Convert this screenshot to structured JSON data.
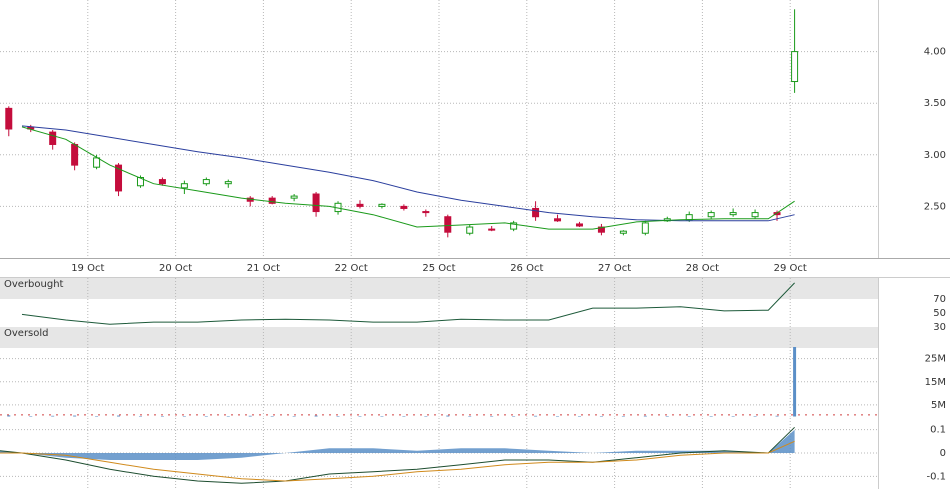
{
  "chart_data": [
    {
      "type": "candlestick",
      "xlim": [
        -10,
        90
      ],
      "xticks": [
        {
          "value": 0,
          "label": "19 Oct"
        },
        {
          "value": 10,
          "label": "20 Oct"
        },
        {
          "value": 20,
          "label": "21 Oct"
        },
        {
          "value": 30,
          "label": "22 Oct"
        },
        {
          "value": 40,
          "label": "25 Oct"
        },
        {
          "value": 50,
          "label": "26 Oct"
        },
        {
          "value": 60,
          "label": "27 Oct"
        },
        {
          "value": 70,
          "label": "28 Oct"
        },
        {
          "value": 80,
          "label": "29 Oct"
        }
      ],
      "ylim": [
        2.0,
        4.5
      ],
      "yticks": [
        {
          "value": 2.5,
          "label": "2.50"
        },
        {
          "value": 3,
          "label": "3.00"
        },
        {
          "value": 3.5,
          "label": "3.50"
        },
        {
          "value": 4,
          "label": "4.00"
        }
      ],
      "grid": true,
      "up_color": "#1a9a1a",
      "down_color": "#c40d3c",
      "x": [
        -9,
        -6.5,
        -4,
        -1.5,
        1,
        3.5,
        6,
        8.5,
        11,
        13.5,
        16,
        18.5,
        21,
        23.5,
        26,
        28.5,
        31,
        33.5,
        36,
        38.5,
        41,
        43.5,
        46,
        48.5,
        51,
        53.5,
        56,
        58.5,
        61,
        63.5,
        66,
        68.5,
        71,
        73.5,
        76,
        78.5,
        80.5
      ],
      "open": [
        3.45,
        3.27,
        3.22,
        3.1,
        2.88,
        2.9,
        2.7,
        2.76,
        2.68,
        2.72,
        2.72,
        2.58,
        2.58,
        2.58,
        2.62,
        2.45,
        2.52,
        2.5,
        2.5,
        2.45,
        2.4,
        2.24,
        2.28,
        2.28,
        2.48,
        2.38,
        2.33,
        2.3,
        2.24,
        2.24,
        2.36,
        2.37,
        2.4,
        2.42,
        2.4,
        2.44,
        3.71
      ],
      "high": [
        3.47,
        3.29,
        3.24,
        3.12,
        3.0,
        2.92,
        2.8,
        2.78,
        2.75,
        2.78,
        2.76,
        2.6,
        2.6,
        2.62,
        2.64,
        2.55,
        2.56,
        2.53,
        2.52,
        2.47,
        2.42,
        2.32,
        2.31,
        2.36,
        2.55,
        2.42,
        2.35,
        2.33,
        2.27,
        2.36,
        2.4,
        2.45,
        2.46,
        2.48,
        2.47,
        2.46,
        4.41
      ],
      "low": [
        3.18,
        3.22,
        3.05,
        2.85,
        2.86,
        2.6,
        2.68,
        2.7,
        2.62,
        2.7,
        2.68,
        2.5,
        2.52,
        2.55,
        2.4,
        2.42,
        2.48,
        2.48,
        2.46,
        2.4,
        2.2,
        2.22,
        2.26,
        2.26,
        2.36,
        2.35,
        2.3,
        2.22,
        2.22,
        2.22,
        2.35,
        2.35,
        2.38,
        2.4,
        2.38,
        2.36,
        3.6
      ],
      "close": [
        3.25,
        3.25,
        3.1,
        2.9,
        2.97,
        2.65,
        2.78,
        2.72,
        2.72,
        2.76,
        2.74,
        2.55,
        2.53,
        2.6,
        2.45,
        2.53,
        2.5,
        2.52,
        2.48,
        2.44,
        2.25,
        2.3,
        2.27,
        2.34,
        2.4,
        2.36,
        2.31,
        2.25,
        2.26,
        2.34,
        2.38,
        2.42,
        2.44,
        2.44,
        2.44,
        2.42,
        4.0
      ],
      "series": [
        {
          "color": "#2b3f9e",
          "x": [
            -7.5,
            -2.5,
            2.5,
            7.5,
            12.5,
            17.5,
            22.5,
            27.5,
            32.5,
            37.5,
            42.5,
            47.5,
            52.5,
            57.5,
            62.5,
            67.5,
            72.5,
            77.5,
            80.5
          ],
          "values": [
            3.28,
            3.24,
            3.17,
            3.1,
            3.03,
            2.97,
            2.9,
            2.83,
            2.75,
            2.64,
            2.56,
            2.5,
            2.44,
            2.4,
            2.37,
            2.36,
            2.36,
            2.36,
            2.42
          ]
        },
        {
          "color": "#1a9a1a",
          "x": [
            -7.5,
            -2.5,
            2.5,
            7.5,
            12.5,
            17.5,
            22.5,
            27.5,
            32.5,
            37.5,
            42.5,
            47.5,
            52.5,
            57.5,
            62.5,
            67.5,
            72.5,
            77.5,
            80.5
          ],
          "values": [
            3.27,
            3.15,
            2.9,
            2.72,
            2.65,
            2.58,
            2.53,
            2.5,
            2.42,
            2.3,
            2.32,
            2.34,
            2.28,
            2.28,
            2.35,
            2.37,
            2.38,
            2.38,
            2.55
          ]
        }
      ]
    },
    {
      "type": "line",
      "ylim": [
        0,
        100
      ],
      "yticks": [
        30,
        50,
        70
      ],
      "bands": [
        {
          "label": "Overbought",
          "from": 70,
          "to": 100
        },
        {
          "label": "Oversold",
          "from": 0,
          "to": 30
        }
      ],
      "series": [
        {
          "color": "#1d5a3a",
          "x": [
            -7.5,
            -2.5,
            2.5,
            7.5,
            12.5,
            17.5,
            22.5,
            27.5,
            32.5,
            37.5,
            42.5,
            47.5,
            52.5,
            57.5,
            62.5,
            67.5,
            72.5,
            77.5,
            80.5
          ],
          "values": [
            48,
            40,
            34,
            37,
            37,
            40,
            41,
            40,
            37,
            37,
            41,
            40,
            40,
            57,
            57,
            59,
            53,
            54,
            93
          ]
        }
      ]
    },
    {
      "type": "bar",
      "ylim": [
        0,
        30
      ],
      "yticks": [
        {
          "value": 5,
          "label": "5M"
        },
        {
          "value": 15,
          "label": "15M"
        },
        {
          "value": 25,
          "label": "25M"
        }
      ],
      "grid": true,
      "color": "#5b8fc7",
      "ref_line": 0.7,
      "ref_color": "#d04040",
      "x": [
        -9,
        -6.5,
        -4,
        -1.5,
        1,
        3.5,
        6,
        8.5,
        11,
        13.5,
        16,
        18.5,
        21,
        23.5,
        26,
        28.5,
        31,
        33.5,
        36,
        38.5,
        41,
        43.5,
        46,
        48.5,
        51,
        53.5,
        56,
        58.5,
        61,
        63.5,
        66,
        68.5,
        71,
        73.5,
        76,
        78.5,
        80.5
      ],
      "values": [
        0.5,
        0.2,
        0.3,
        0.4,
        0.2,
        0.4,
        0.2,
        0.2,
        0.1,
        0.2,
        0.1,
        0.3,
        0.2,
        0.1,
        0.4,
        0.2,
        0.1,
        0.1,
        0.1,
        0.1,
        0.4,
        0.2,
        0.1,
        0.2,
        0.3,
        0.1,
        0.1,
        0.2,
        0.1,
        0.3,
        0.1,
        0.2,
        0.1,
        0.2,
        0.1,
        0.3,
        30
      ]
    },
    {
      "type": "line",
      "ylim": [
        -0.15,
        0.15
      ],
      "yticks": [
        -0.1,
        0,
        0.1
      ],
      "grid": true,
      "series": [
        {
          "color": "#5b8fc7",
          "fill": true,
          "x": [
            -10,
            -7.5,
            -2.5,
            2.5,
            7.5,
            12.5,
            17.5,
            22.5,
            27.5,
            32.5,
            37.5,
            42.5,
            47.5,
            52.5,
            57.5,
            62.5,
            67.5,
            72.5,
            77.5,
            80.5
          ],
          "values": [
            0.01,
            0,
            -0.02,
            -0.03,
            -0.03,
            -0.03,
            -0.02,
            0,
            0.02,
            0.02,
            0.01,
            0.02,
            0.02,
            0.01,
            0,
            0.01,
            0.01,
            0.01,
            0,
            0.1
          ]
        },
        {
          "color": "#1d4d2f",
          "x": [
            -10,
            -7.5,
            -2.5,
            2.5,
            7.5,
            12.5,
            17.5,
            22.5,
            27.5,
            32.5,
            37.5,
            42.5,
            47.5,
            52.5,
            57.5,
            62.5,
            67.5,
            72.5,
            77.5,
            80.5
          ],
          "values": [
            0.01,
            0,
            -0.03,
            -0.07,
            -0.1,
            -0.12,
            -0.13,
            -0.12,
            -0.09,
            -0.08,
            -0.07,
            -0.05,
            -0.03,
            -0.03,
            -0.04,
            -0.02,
            0,
            0.01,
            0,
            0.11
          ]
        },
        {
          "color": "#d08a1c",
          "x": [
            -10,
            -7.5,
            -2.5,
            2.5,
            7.5,
            12.5,
            17.5,
            22.5,
            27.5,
            32.5,
            37.5,
            42.5,
            47.5,
            52.5,
            57.5,
            62.5,
            67.5,
            72.5,
            77.5,
            80.5
          ],
          "values": [
            0,
            0,
            -0.01,
            -0.04,
            -0.07,
            -0.09,
            -0.11,
            -0.12,
            -0.11,
            -0.1,
            -0.08,
            -0.07,
            -0.05,
            -0.04,
            -0.04,
            -0.03,
            -0.01,
            0,
            0,
            0.05
          ]
        }
      ]
    }
  ]
}
